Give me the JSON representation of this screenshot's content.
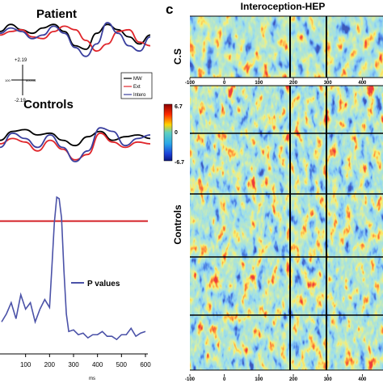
{
  "panel_letter": "c",
  "left": {
    "patient_title": "Patient",
    "controls_title": "Controls",
    "scale_bar": {
      "top": "+2.19",
      "bottom": "-2.19",
      "left_label": "100",
      "right_label": "600ms"
    },
    "legend": [
      "MW",
      "Ext",
      "Intero"
    ],
    "pvalue_legend": "P values",
    "x_unit": "ms",
    "x_ticks": [
      "100",
      "200",
      "300",
      "400",
      "500",
      "600"
    ],
    "colors": {
      "mw": "#000000",
      "ext": "#e0262b",
      "intero": "#3a3f9e",
      "threshold": "#d42127",
      "pvalue": "#4b52a8"
    }
  },
  "right": {
    "title": "Interoception-HEP",
    "row_label_top": "C.S",
    "row_label_bottom": "Controls",
    "colorbar": {
      "max": "6.7",
      "mid": "0",
      "min": "-6.7"
    },
    "x_ticks": [
      "-100",
      "0",
      "100",
      "200",
      "300",
      "400"
    ],
    "x_ticks_bottom": [
      "-100",
      "0",
      "100",
      "200",
      "300",
      "400"
    ]
  },
  "chart_data": [
    {
      "type": "line",
      "title": "Patient",
      "series": [
        {
          "name": "MW",
          "values": [
            0.5,
            0.9,
            0.6,
            0.4,
            0.7,
            0.9,
            0.5,
            -0.3,
            -0.5,
            0.4,
            0.9,
            0.6,
            0.2,
            -0.2,
            0.3
          ]
        },
        {
          "name": "Ext",
          "values": [
            0.3,
            0.5,
            0.6,
            0.2,
            0.1,
            0.5,
            0.8,
            0.6,
            0.0,
            -0.6,
            -0.2,
            0.5,
            0.6,
            -0.1,
            -0.3
          ]
        },
        {
          "name": "Intero",
          "values": [
            0.4,
            0.7,
            0.5,
            0.1,
            0.3,
            0.8,
            0.4,
            -0.4,
            -0.9,
            -0.2,
            1.0,
            0.4,
            -0.3,
            -0.6,
            0.2
          ]
        }
      ]
    },
    {
      "type": "line",
      "title": "Controls",
      "series": [
        {
          "name": "MW",
          "values": [
            0.2,
            0.7,
            0.8,
            0.5,
            0.6,
            0.2,
            -0.1,
            0.4,
            0.7,
            0.2,
            0.4,
            0.5,
            0.3
          ]
        },
        {
          "name": "Ext",
          "values": [
            0.0,
            0.3,
            0.1,
            -0.4,
            0.2,
            -0.3,
            -0.9,
            -0.6,
            0.6,
            0.1,
            -0.2,
            0.1,
            0.0
          ]
        },
        {
          "name": "Intero",
          "values": [
            -0.2,
            0.6,
            0.3,
            -0.2,
            0.5,
            -0.2,
            -1.0,
            -0.4,
            0.9,
            0.7,
            -0.1,
            0.3,
            0.5
          ]
        }
      ]
    },
    {
      "type": "line",
      "x": [
        0,
        20,
        40,
        60,
        80,
        100,
        120,
        140,
        160,
        180,
        200,
        210,
        220,
        230,
        240,
        250,
        260,
        270,
        280,
        300,
        320,
        340,
        360,
        380,
        400,
        420,
        440,
        460,
        480,
        500,
        520,
        540,
        560,
        580,
        600
      ],
      "series": [
        {
          "name": "P values",
          "values": [
            0.18,
            0.25,
            0.3,
            0.22,
            0.35,
            0.28,
            0.3,
            0.2,
            0.26,
            0.34,
            0.27,
            0.55,
            0.8,
            0.98,
            0.95,
            0.85,
            0.5,
            0.25,
            0.12,
            0.15,
            0.1,
            0.13,
            0.08,
            0.12,
            0.1,
            0.14,
            0.09,
            0.11,
            0.07,
            0.12,
            0.1,
            0.16,
            0.09,
            0.13,
            0.12
          ]
        }
      ],
      "xlabel": "ms",
      "threshold": 0.82,
      "xlim": [
        0,
        600
      ],
      "ylim": [
        0,
        1
      ]
    }
  ]
}
